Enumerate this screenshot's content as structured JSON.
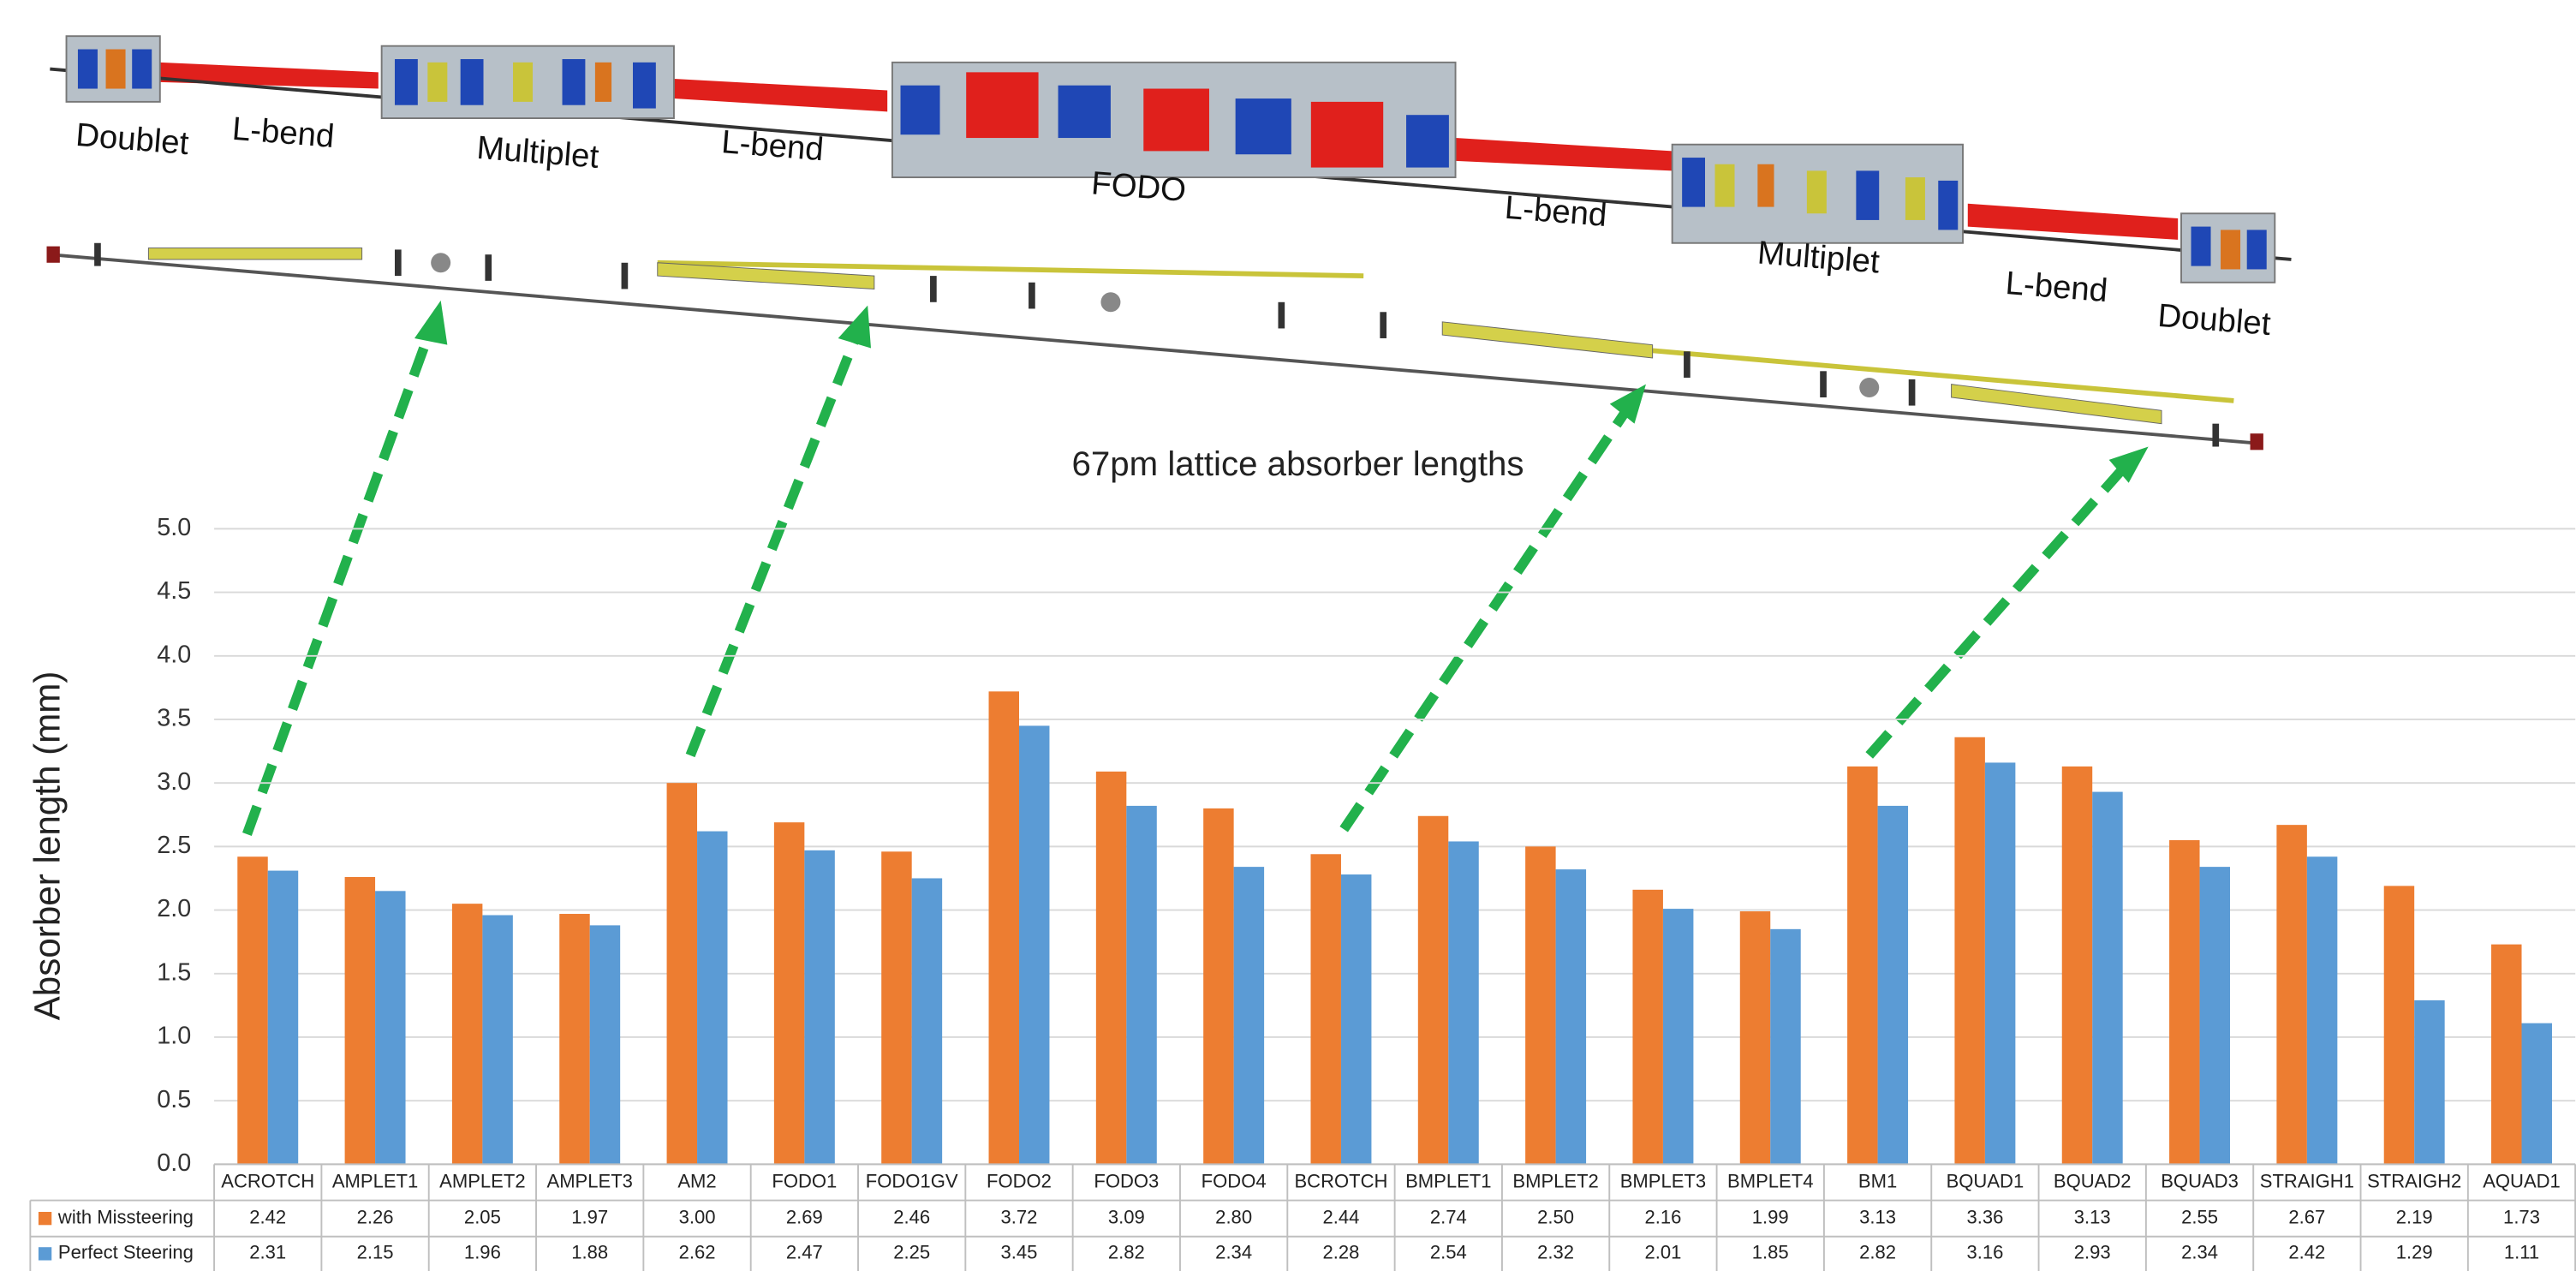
{
  "diagram": {
    "labels": [
      "Doublet",
      "L-bend",
      "Multiplet",
      "L-bend",
      "FODO",
      "L-bend",
      "Multiplet",
      "L-bend",
      "Doublet"
    ]
  },
  "chart_data": {
    "type": "bar",
    "title": "67pm lattice absorber lengths",
    "y_label": "Absorber length (mm)",
    "categories": [
      "ACROTCH",
      "AMPLET1",
      "AMPLET2",
      "AMPLET3",
      "AM2",
      "FODO1",
      "FODO1GV",
      "FODO2",
      "FODO3",
      "FODO4",
      "BCROTCH",
      "BMPLET1",
      "BMPLET2",
      "BMPLET3",
      "BMPLET4",
      "BM1",
      "BQUAD1",
      "BQUAD2",
      "BQUAD3",
      "STRAIGH1",
      "STRAIGH2",
      "AQUAD1"
    ],
    "series": [
      {
        "name": "with Missteering",
        "color": "#ed7d31",
        "values": [
          2.42,
          2.26,
          2.05,
          1.97,
          3,
          2.69,
          2.46,
          3.72,
          3.09,
          2.8,
          2.44,
          2.74,
          2.5,
          2.16,
          1.99,
          3.13,
          3.36,
          3.13,
          2.55,
          2.67,
          2.19,
          1.73
        ],
        "value_labels": [
          "2.42",
          "2.26",
          "2.05",
          "1.97",
          "3.00",
          "2.69",
          "2.46",
          "3.72",
          "3.09",
          "2.80",
          "2.44",
          "2.74",
          "2.50",
          "2.16",
          "1.99",
          "3.13",
          "3.36",
          "3.13",
          "2.55",
          "2.67",
          "2.19",
          "1.73"
        ]
      },
      {
        "name": "Perfect Steering",
        "color": "#5b9bd5",
        "values": [
          2.31,
          2.15,
          1.96,
          1.88,
          2.62,
          2.47,
          2.25,
          3.45,
          2.82,
          2.34,
          2.28,
          2.54,
          2.32,
          2.01,
          1.85,
          2.82,
          3.16,
          2.93,
          2.34,
          2.42,
          1.29,
          1.11
        ],
        "value_labels": [
          "2.31",
          "2.15",
          "1.96",
          "1.88",
          "2.62",
          "2.47",
          "2.25",
          "3.45",
          "2.82",
          "2.34",
          "2.28",
          "2.54",
          "2.32",
          "2.01",
          "1.85",
          "2.82",
          "3.16",
          "2.93",
          "2.34",
          "2.42",
          "1.29",
          "1.11"
        ]
      }
    ],
    "ylim": [
      0,
      5
    ],
    "yticks": [
      {
        "value": 0,
        "label": "0.0"
      },
      {
        "value": 0.5,
        "label": "0.5"
      },
      {
        "value": 1,
        "label": "1.0"
      },
      {
        "value": 1.5,
        "label": "1.5"
      },
      {
        "value": 2,
        "label": "2.0"
      },
      {
        "value": 2.5,
        "label": "2.5"
      },
      {
        "value": 3,
        "label": "3.0"
      },
      {
        "value": 3.5,
        "label": "3.5"
      },
      {
        "value": 4,
        "label": "4.0"
      },
      {
        "value": 4.5,
        "label": "4.5"
      },
      {
        "value": 5,
        "label": "5.0"
      }
    ],
    "grid": true
  }
}
